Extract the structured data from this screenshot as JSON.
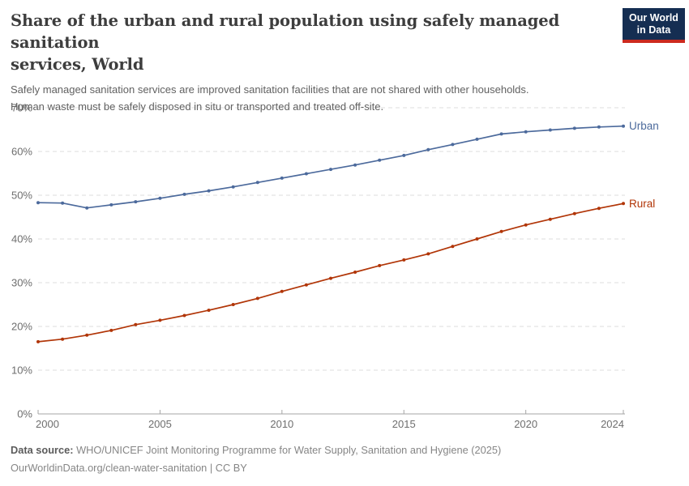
{
  "header": {
    "title": "Share of the urban and rural population using safely managed sanitation services, World",
    "title_line1": "Share of the urban and rural population using safely managed sanitation",
    "title_line2": "services, World",
    "subtitle_line1": "Safely managed sanitation services are improved sanitation facilities that are not shared with other households.",
    "subtitle_line2": "Human waste must be safely disposed in situ or transported and treated off-site.",
    "logo": {
      "line1": "Our World",
      "line2": "in Data",
      "bg_color": "#152e52",
      "accent_color": "#cc2a1f"
    }
  },
  "chart_data": {
    "type": "line",
    "title": "Share of the urban and rural population using safely managed sanitation services, World",
    "x": [
      2000,
      2001,
      2002,
      2003,
      2004,
      2005,
      2006,
      2007,
      2008,
      2009,
      2010,
      2011,
      2012,
      2013,
      2014,
      2015,
      2016,
      2017,
      2018,
      2019,
      2020,
      2021,
      2022,
      2023,
      2024
    ],
    "series": [
      {
        "name": "Urban",
        "color": "#4c6a9c",
        "values": [
          48.3,
          48.2,
          47.1,
          47.8,
          48.5,
          49.3,
          50.2,
          51.0,
          51.9,
          52.9,
          53.9,
          54.9,
          55.9,
          56.9,
          58.0,
          59.1,
          60.4,
          61.6,
          62.8,
          64.0,
          64.5,
          64.9,
          65.3,
          65.6,
          65.8
        ]
      },
      {
        "name": "Rural",
        "color": "#b13507",
        "values": [
          16.5,
          17.1,
          18.0,
          19.1,
          20.4,
          21.4,
          22.5,
          23.7,
          25.0,
          26.4,
          28.0,
          29.5,
          31.0,
          32.4,
          33.9,
          35.2,
          36.6,
          38.3,
          40.0,
          41.7,
          43.2,
          44.5,
          45.8,
          47.0,
          48.1
        ]
      }
    ],
    "xlim": [
      2000,
      2024
    ],
    "ylim": [
      0,
      70
    ],
    "x_ticks": [
      2000,
      2005,
      2010,
      2015,
      2020,
      2024
    ],
    "y_ticks": [
      0,
      10,
      20,
      30,
      40,
      50,
      60,
      70
    ],
    "y_tick_suffix": "%",
    "grid": "horizontal-dashed",
    "gridline_color": "#dddddd",
    "axis_color": "#a5a5a5",
    "tick_label_color": "#6e6e6e",
    "legend_position": "end-of-line"
  },
  "footer": {
    "source_label": "Data source:",
    "source_text": " WHO/UNICEF Joint Monitoring Programme for Water Supply, Sanitation and Hygiene (2025)",
    "license_line": "OurWorldinData.org/clean-water-sanitation | CC BY"
  }
}
